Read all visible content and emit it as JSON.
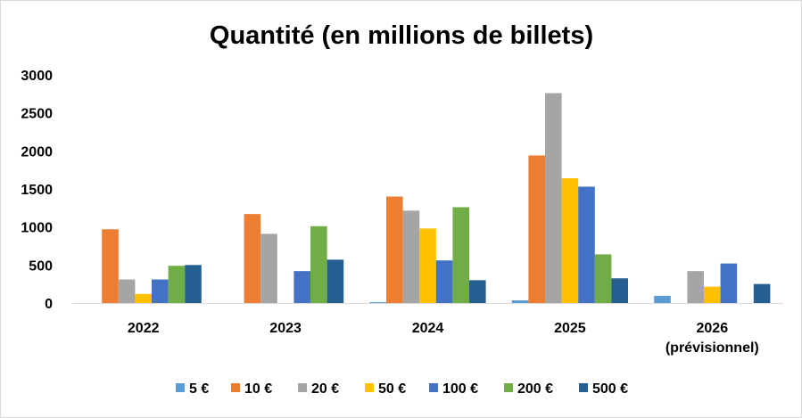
{
  "chart_data": {
    "type": "bar",
    "title": "Quantité (en millions de billets)",
    "xlabel": "",
    "ylabel": "",
    "ylim": [
      0,
      3000
    ],
    "yticks": [
      0,
      500,
      1000,
      1500,
      2000,
      2500,
      3000
    ],
    "grid": false,
    "legend_position": "bottom",
    "categories": [
      [
        "2022"
      ],
      [
        "2023"
      ],
      [
        "2024"
      ],
      [
        "2025"
      ],
      [
        "2026",
        "(prévisionnel)"
      ]
    ],
    "series": [
      {
        "name": "5 €",
        "color": "#5b9bd5",
        "values": [
          0,
          0,
          12,
          35,
          95
        ]
      },
      {
        "name": "10 €",
        "color": "#ed7d31",
        "values": [
          970,
          1170,
          1400,
          1940,
          0
        ]
      },
      {
        "name": "20 €",
        "color": "#a5a5a5",
        "values": [
          310,
          910,
          1215,
          2760,
          420
        ]
      },
      {
        "name": "50 €",
        "color": "#ffc000",
        "values": [
          120,
          0,
          980,
          1640,
          215
        ]
      },
      {
        "name": "100 €",
        "color": "#4472c4",
        "values": [
          310,
          420,
          560,
          1530,
          520
        ]
      },
      {
        "name": "200 €",
        "color": "#70ad47",
        "values": [
          490,
          1010,
          1260,
          640,
          0
        ]
      },
      {
        "name": "500 €",
        "color": "#255e91",
        "values": [
          500,
          570,
          300,
          325,
          250
        ]
      }
    ]
  }
}
